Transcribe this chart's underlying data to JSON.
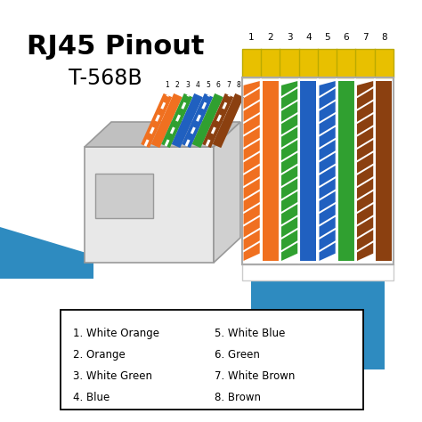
{
  "title_line1": "RJ45 Pinout",
  "title_line2": "T-568B",
  "bg_color": "#ffffff",
  "text_color": "#000000",
  "cable_blue": "#2e8bc0",
  "connector_face": "#e8e8e8",
  "connector_side": "#d0d0d0",
  "connector_top": "#c0c0c0",
  "connector_outline": "#999999",
  "pin_colors": [
    {
      "main": "#f07020",
      "striped": true,
      "name": "White Orange"
    },
    {
      "main": "#f07020",
      "striped": false,
      "name": "Orange"
    },
    {
      "main": "#30a030",
      "striped": true,
      "name": "White Green"
    },
    {
      "main": "#2060c0",
      "striped": false,
      "name": "Blue"
    },
    {
      "main": "#2060c0",
      "striped": true,
      "name": "White Blue"
    },
    {
      "main": "#30a030",
      "striped": false,
      "name": "Green"
    },
    {
      "main": "#8b4010",
      "striped": true,
      "name": "White Brown"
    },
    {
      "main": "#8b4010",
      "striped": false,
      "name": "Brown"
    }
  ],
  "legend_col1": [
    "1. White Orange",
    "2. Orange",
    "3. White Green",
    "4. Blue"
  ],
  "legend_col2": [
    "5. White Blue",
    "6. Green",
    "7. White Brown",
    "8. Brown"
  ],
  "gold_color": "#e8c000",
  "white_color": "#ffffff",
  "stripe_color": "#ffffff"
}
